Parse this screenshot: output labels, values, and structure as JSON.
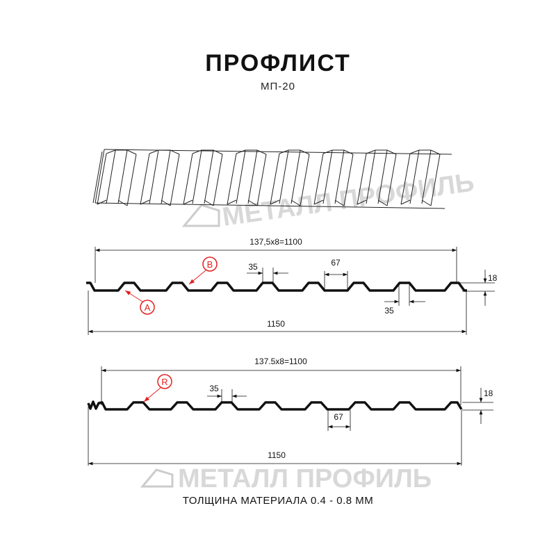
{
  "title": "ПРОФЛИСТ",
  "subtitle": "МП-20",
  "watermark": "МЕТАЛЛ ПРОФИЛЬ",
  "profile_a": {
    "pitch_label": "137,5x8=1100",
    "width_label": "1150",
    "top_width_label": "35",
    "bottom_width_label": "35",
    "rib_label": "67",
    "height_label": "18",
    "marker_a": "A",
    "marker_b": "B"
  },
  "profile_r": {
    "pitch_label": "137.5x8=1100",
    "width_label": "1150",
    "top_width_label": "35",
    "rib_label": "67",
    "height_label": "18",
    "marker_r": "R"
  },
  "footer": "ТОЛЩИНА МАТЕРИАЛА 0.4 - 0.8 ММ",
  "colors": {
    "profile": "#111111",
    "marker": "#e32020",
    "watermark": "#cccccc"
  }
}
